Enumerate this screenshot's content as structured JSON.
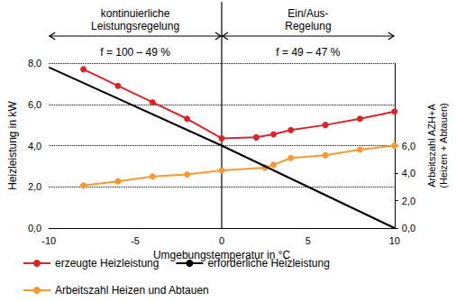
{
  "chart_data": {
    "type": "line",
    "xlabel": "Umgebungstemperatur in °C",
    "ylabel": "Heizleistung in kW",
    "y2label": "Arbeitszahl AZH+A\n(Heizen + Abtauen)",
    "xlim": [
      -10,
      10
    ],
    "xticks": [
      -10,
      -5,
      0,
      5,
      10
    ],
    "ylim": [
      0,
      8
    ],
    "yticks": [
      {
        "value": 0,
        "label": "0,0"
      },
      {
        "value": 2,
        "label": "2,0"
      },
      {
        "value": 4,
        "label": "4,0"
      },
      {
        "value": 6,
        "label": "6,0"
      },
      {
        "value": 8,
        "label": "8,0"
      }
    ],
    "y2lim": [
      0,
      12
    ],
    "y2ticks": [
      {
        "value": 0,
        "label": "0,0"
      },
      {
        "value": 2,
        "label": "2,0"
      },
      {
        "value": 4,
        "label": "4,0"
      },
      {
        "value": 6,
        "label": "6,0"
      }
    ],
    "grid": true,
    "legend": "bottom",
    "regions": [
      {
        "label": "kontinuierliche\nLeistungsregelung",
        "note": "f = 100 – 49 %",
        "from": -10,
        "to": 0
      },
      {
        "label": "Ein/Aus-\nRegelung",
        "note": "f = 49 – 47 %",
        "from": 0,
        "to": 10
      }
    ],
    "series": [
      {
        "name": "erzeugte Heizleistung",
        "color": "#d7262b",
        "marker": "circle",
        "x": [
          -8,
          -6,
          -4,
          -2,
          0,
          2,
          3,
          4,
          6,
          8,
          10
        ],
        "values": [
          7.7,
          6.9,
          6.1,
          5.3,
          4.35,
          4.4,
          4.55,
          4.75,
          5.0,
          5.3,
          5.65
        ]
      },
      {
        "name": "erforderliche Heizleistung",
        "color": "#000000",
        "marker": "none",
        "x": [
          -10,
          0,
          10
        ],
        "values": [
          7.8,
          4.0,
          0.0
        ]
      },
      {
        "name": "Arbeitszahl Heizen und Abtauen",
        "color": "#f39a32",
        "marker": "circle",
        "axis": "y2",
        "x": [
          -8,
          -6,
          -4,
          -2,
          0,
          2.5,
          3,
          4,
          6,
          8,
          10
        ],
        "values": [
          3.1,
          3.4,
          3.75,
          3.9,
          4.2,
          4.4,
          4.6,
          5.1,
          5.3,
          5.7,
          6.0
        ]
      }
    ]
  }
}
